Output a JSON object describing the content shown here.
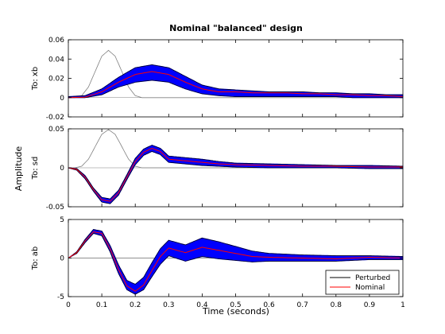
{
  "chart_data": {
    "type": "line",
    "title": "Nominal \"balanced\" design",
    "xlabel": "Time (seconds)",
    "ylabel": "Amplitude",
    "xlim": [
      0,
      1
    ],
    "x_ticks": [
      "0",
      "0.1",
      "0.2",
      "0.3",
      "0.4",
      "0.5",
      "0.6",
      "0.7",
      "0.8",
      "0.9",
      "1"
    ],
    "grid": false,
    "legend": {
      "placement": "bottom-right of bottom subplot",
      "entries": [
        {
          "label": "Perturbed",
          "color": "#000000"
        },
        {
          "label": "Nominal",
          "color": "#ff0000"
        }
      ]
    },
    "envelope_color": "#0000ff",
    "reference_color": "#808080",
    "subplots": [
      {
        "label": "To: xb",
        "ylim": [
          -0.02,
          0.06
        ],
        "y_ticks": [
          "-0.02",
          "0",
          "0.02",
          "0.04",
          "0.06"
        ],
        "reference": {
          "x": [
            0,
            0.02,
            0.04,
            0.06,
            0.08,
            0.1,
            0.12,
            0.14,
            0.16,
            0.18,
            0.2,
            0.22,
            0.24,
            1
          ],
          "y": [
            0,
            0,
            0.002,
            0.011,
            0.027,
            0.043,
            0.049,
            0.043,
            0.027,
            0.011,
            0.002,
            0,
            0,
            0
          ]
        },
        "nominal": {
          "x": [
            0,
            0.05,
            0.1,
            0.15,
            0.2,
            0.25,
            0.3,
            0.35,
            0.4,
            0.45,
            0.5,
            0.55,
            0.6,
            0.65,
            0.7,
            0.75,
            0.8,
            0.85,
            0.9,
            0.95,
            1
          ],
          "y": [
            0,
            0.0005,
            0.006,
            0.016,
            0.024,
            0.027,
            0.024,
            0.016,
            0.009,
            0.006,
            0.006,
            0.005,
            0.005,
            0.005,
            0.004,
            0.004,
            0.003,
            0.003,
            0.002,
            0.002,
            0.001
          ]
        },
        "band_upper": [
          0.001,
          0.002,
          0.009,
          0.021,
          0.031,
          0.034,
          0.031,
          0.022,
          0.013,
          0.009,
          0.008,
          0.007,
          0.006,
          0.006,
          0.006,
          0.005,
          0.005,
          0.004,
          0.004,
          0.003,
          0.003
        ],
        "band_lower": [
          0,
          0,
          0.003,
          0.011,
          0.016,
          0.018,
          0.016,
          0.009,
          0.004,
          0.002,
          0.001,
          0.001,
          0.001,
          0.001,
          0.001,
          0.001,
          0.001,
          0,
          0,
          0,
          0
        ]
      },
      {
        "label": "To: sd",
        "ylim": [
          -0.05,
          0.05
        ],
        "y_ticks": [
          "-0.05",
          "0",
          "0.05"
        ],
        "reference": {
          "x": [
            0,
            0.02,
            0.04,
            0.06,
            0.08,
            0.1,
            0.12,
            0.14,
            0.16,
            0.18,
            0.2,
            0.22,
            0.24,
            1
          ],
          "y": [
            0,
            0,
            0.002,
            0.011,
            0.027,
            0.043,
            0.049,
            0.043,
            0.027,
            0.011,
            0.002,
            0,
            0,
            0
          ]
        },
        "nominal": {
          "x": [
            0,
            0.025,
            0.05,
            0.075,
            0.1,
            0.125,
            0.15,
            0.175,
            0.2,
            0.225,
            0.25,
            0.275,
            0.3,
            0.35,
            0.4,
            0.45,
            0.5,
            0.6,
            0.7,
            0.8,
            0.9,
            1
          ],
          "y": [
            0,
            -0.002,
            -0.012,
            -0.028,
            -0.041,
            -0.043,
            -0.032,
            -0.012,
            0.008,
            0.02,
            0.025,
            0.021,
            0.011,
            0.009,
            0.007,
            0.005,
            0.004,
            0.003,
            0.002,
            0.002,
            0.001,
            0.001
          ]
        },
        "band_upper": [
          0,
          -0.001,
          -0.01,
          -0.026,
          -0.038,
          -0.04,
          -0.029,
          -0.009,
          0.012,
          0.024,
          0.029,
          0.025,
          0.015,
          0.013,
          0.011,
          0.008,
          0.006,
          0.005,
          0.004,
          0.003,
          0.003,
          0.002
        ],
        "band_lower": [
          0,
          -0.003,
          -0.014,
          -0.03,
          -0.044,
          -0.046,
          -0.035,
          -0.015,
          0.004,
          0.016,
          0.021,
          0.017,
          0.007,
          0.005,
          0.003,
          0.002,
          0.001,
          0,
          0,
          0,
          -0.001,
          -0.001
        ]
      },
      {
        "label": "To: ab",
        "ylim": [
          -5,
          5
        ],
        "y_ticks": [
          "-5",
          "0",
          "5"
        ],
        "reference": {
          "x": [
            0,
            1
          ],
          "y": [
            0,
            0
          ]
        },
        "nominal": {
          "x": [
            0,
            0.025,
            0.05,
            0.075,
            0.1,
            0.125,
            0.15,
            0.175,
            0.2,
            0.225,
            0.25,
            0.275,
            0.3,
            0.35,
            0.4,
            0.45,
            0.5,
            0.55,
            0.6,
            0.7,
            0.8,
            0.9,
            1
          ],
          "y": [
            0,
            0.7,
            2.2,
            3.4,
            3.2,
            1.2,
            -1.5,
            -3.6,
            -4.3,
            -3.5,
            -1.6,
            0.2,
            1.3,
            0.7,
            1.4,
            1.0,
            0.6,
            0.2,
            0.1,
            0.0,
            -0.1,
            0.1,
            0.0
          ]
        },
        "band_upper": [
          0,
          0.8,
          2.4,
          3.7,
          3.5,
          1.6,
          -0.9,
          -2.9,
          -3.4,
          -2.5,
          -0.6,
          1.2,
          2.3,
          1.7,
          2.6,
          2.1,
          1.5,
          0.9,
          0.6,
          0.4,
          0.3,
          0.3,
          0.2
        ],
        "band_lower": [
          0,
          0.6,
          2.0,
          3.2,
          2.9,
          0.8,
          -2.0,
          -4.1,
          -4.7,
          -4.1,
          -2.4,
          -0.8,
          0.3,
          -0.4,
          0.2,
          -0.1,
          -0.3,
          -0.5,
          -0.4,
          -0.4,
          -0.4,
          -0.2,
          -0.2
        ]
      }
    ]
  }
}
